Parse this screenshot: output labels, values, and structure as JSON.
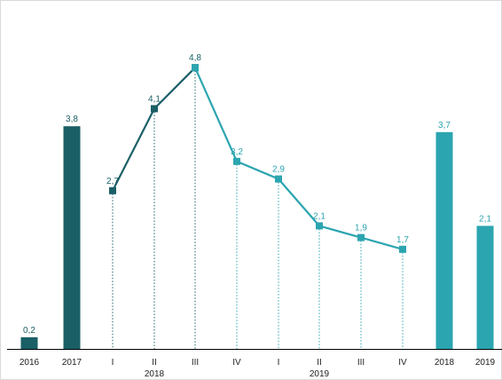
{
  "chart_data": {
    "type": "bar+line",
    "x_ticks": [
      "2016",
      "2017",
      "I",
      "II",
      "III",
      "IV",
      "I",
      "II",
      "III",
      "IV",
      "2018",
      "2019"
    ],
    "x_groups": [
      "2018",
      "2019"
    ],
    "bars": [
      {
        "tick": "2016",
        "value": 0.2,
        "label": "0,2",
        "color": "#1a5f66"
      },
      {
        "tick": "2017",
        "value": 3.8,
        "label": "3,8",
        "color": "#1a5f66"
      },
      {
        "tick": "2018",
        "value": 3.7,
        "label": "3,7",
        "color": "#2ba5b0"
      },
      {
        "tick": "2019",
        "value": 2.1,
        "label": "2,1",
        "color": "#2ba5b0"
      }
    ],
    "series": [
      {
        "color": "#1a5f66",
        "x": [
          "2018 I",
          "2018 II",
          "2018 III"
        ],
        "values": [
          2.7,
          4.1,
          4.8
        ],
        "labels": [
          "2,7",
          "4,1",
          "4,8"
        ]
      },
      {
        "color": "#2ba5b0",
        "x": [
          "2018 III",
          "2018 IV",
          "2019 I",
          "2019 II",
          "2019 III",
          "2019 IV"
        ],
        "values": [
          4.8,
          3.2,
          2.9,
          2.1,
          1.9,
          1.7
        ],
        "labels": [
          "",
          "3,2",
          "2,9",
          "2,1",
          "1,9",
          "1,7"
        ]
      }
    ],
    "ylim": [
      0,
      5.5
    ],
    "grid": false,
    "colors": {
      "dark": "#1a5f66",
      "light": "#2ba5b0",
      "axis": "#000000"
    }
  }
}
